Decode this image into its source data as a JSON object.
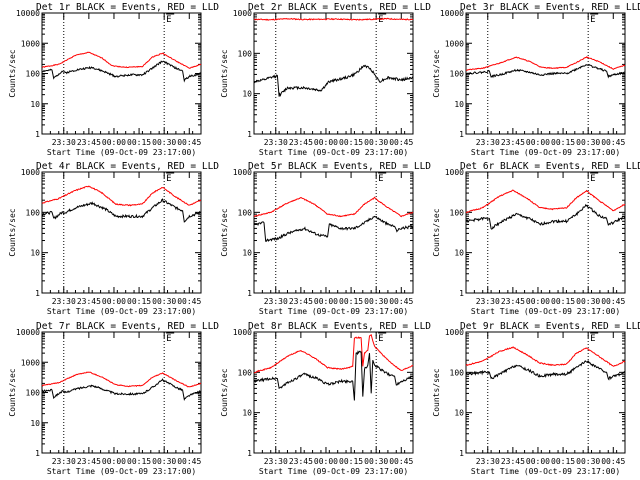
{
  "figure": {
    "background": "#ffffff",
    "colors": {
      "events": "#000000",
      "lld": "#ff0000",
      "axes": "#000000"
    }
  },
  "chart_data": [
    {
      "type": "line",
      "title": "Det 1r BLACK = Events, RED = LLD",
      "xlabel": "Start Time (09-Oct-09 23:17:00)",
      "ylabel": "Counts/sec",
      "x_ticks": [
        "23:30",
        "23:45",
        "00:00",
        "00:15",
        "00:30",
        "00:45"
      ],
      "y_ticks": [
        "1",
        "10",
        "100",
        "1000",
        "10000"
      ],
      "x_range_min": [
        0,
        95
      ],
      "y_log": true,
      "ylim": [
        1,
        10000
      ],
      "grid": false,
      "vlines_min": [
        13,
        73
      ],
      "marker_text": "E",
      "series": [
        {
          "name": "LLD",
          "color": "#ff0000",
          "x": [
            0,
            10,
            20,
            28,
            36,
            42,
            50,
            60,
            66,
            72,
            80,
            88,
            95
          ],
          "values": [
            160,
            200,
            400,
            500,
            320,
            180,
            160,
            170,
            350,
            470,
            260,
            150,
            200
          ]
        },
        {
          "name": "Events",
          "color": "#000000",
          "x": [
            0,
            6,
            7,
            12,
            14,
            20,
            30,
            38,
            44,
            52,
            60,
            66,
            72,
            80,
            84,
            85,
            88,
            95
          ],
          "values": [
            120,
            130,
            70,
            120,
            105,
            130,
            160,
            110,
            80,
            90,
            90,
            150,
            260,
            150,
            120,
            60,
            80,
            100
          ]
        }
      ]
    },
    {
      "type": "line",
      "title": "Det 2r BLACK = Events, RED = LLD",
      "xlabel": "Start Time (09-Oct-09 23:17:00)",
      "ylabel": "Counts/sec",
      "x_ticks": [
        "23:30",
        "23:45",
        "00:00",
        "00:15",
        "00:30",
        "00:45"
      ],
      "y_ticks": [
        "1",
        "10",
        "100",
        "1000"
      ],
      "x_range_min": [
        0,
        95
      ],
      "y_log": true,
      "ylim": [
        1,
        1000
      ],
      "grid": false,
      "vlines_min": [
        13,
        73
      ],
      "marker_text": "E",
      "series": [
        {
          "name": "LLD",
          "color": "#ff0000",
          "x": [
            0,
            10,
            20,
            30,
            40,
            50,
            60,
            70,
            80,
            90,
            95
          ],
          "values": [
            700,
            680,
            720,
            690,
            700,
            710,
            680,
            700,
            720,
            690,
            700
          ]
        },
        {
          "name": "Events",
          "color": "#000000",
          "x": [
            0,
            6,
            10,
            14,
            15,
            20,
            30,
            40,
            45,
            55,
            60,
            66,
            70,
            75,
            80,
            88,
            95
          ],
          "values": [
            20,
            22,
            25,
            28,
            9,
            14,
            14,
            12,
            20,
            25,
            30,
            50,
            40,
            20,
            25,
            22,
            25
          ]
        }
      ]
    },
    {
      "type": "line",
      "title": "Det 3r BLACK = Events, RED = LLD",
      "xlabel": "Start Time (09-Oct-09 23:17:00)",
      "ylabel": "Counts/sec",
      "x_ticks": [
        "23:30",
        "23:45",
        "00:00",
        "00:15",
        "00:30",
        "00:45"
      ],
      "y_ticks": [
        "1",
        "10",
        "100",
        "1000",
        "10000"
      ],
      "x_range_min": [
        0,
        95
      ],
      "y_log": true,
      "ylim": [
        1,
        10000
      ],
      "grid": false,
      "vlines_min": [
        13,
        73
      ],
      "marker_text": "E",
      "series": [
        {
          "name": "LLD",
          "color": "#ff0000",
          "x": [
            0,
            10,
            20,
            30,
            38,
            45,
            52,
            60,
            66,
            72,
            80,
            88,
            95
          ],
          "values": [
            130,
            150,
            220,
            350,
            250,
            160,
            150,
            160,
            230,
            350,
            240,
            140,
            190
          ]
        },
        {
          "name": "Events",
          "color": "#000000",
          "x": [
            0,
            10,
            14,
            15,
            20,
            30,
            38,
            44,
            52,
            60,
            66,
            72,
            80,
            84,
            85,
            88,
            95
          ],
          "values": [
            100,
            110,
            120,
            80,
            90,
            130,
            110,
            90,
            100,
            100,
            140,
            200,
            140,
            120,
            80,
            90,
            110
          ]
        }
      ]
    },
    {
      "type": "line",
      "title": "Det 4r BLACK = Events, RED = LLD",
      "xlabel": "Start Time (09-Oct-09 23:17:00)",
      "ylabel": "Counts/sec",
      "x_ticks": [
        "23:30",
        "23:45",
        "00:00",
        "00:15",
        "00:30",
        "00:45"
      ],
      "y_ticks": [
        "1",
        "10",
        "100",
        "1000"
      ],
      "x_range_min": [
        0,
        95
      ],
      "y_log": true,
      "ylim": [
        1,
        1000
      ],
      "grid": false,
      "vlines_min": [
        13,
        73
      ],
      "marker_text": "E",
      "series": [
        {
          "name": "LLD",
          "color": "#ff0000",
          "x": [
            0,
            10,
            20,
            28,
            36,
            44,
            52,
            60,
            66,
            72,
            80,
            88,
            95
          ],
          "values": [
            170,
            220,
            350,
            450,
            300,
            160,
            150,
            160,
            300,
            420,
            240,
            150,
            200
          ]
        },
        {
          "name": "Events",
          "color": "#000000",
          "x": [
            0,
            6,
            7,
            12,
            14,
            20,
            30,
            38,
            44,
            52,
            60,
            66,
            72,
            80,
            84,
            85,
            88,
            95
          ],
          "values": [
            90,
            100,
            70,
            100,
            100,
            130,
            170,
            120,
            80,
            80,
            80,
            130,
            200,
            130,
            110,
            60,
            80,
            100
          ]
        }
      ]
    },
    {
      "type": "line",
      "title": "Det 5r BLACK = Events, RED = LLD",
      "xlabel": "Start Time (09-Oct-09 23:17:00)",
      "ylabel": "Counts/sec",
      "x_ticks": [
        "23:30",
        "23:45",
        "00:00",
        "00:15",
        "00:30",
        "00:45"
      ],
      "y_ticks": [
        "1",
        "10",
        "100",
        "1000"
      ],
      "x_range_min": [
        0,
        95
      ],
      "y_log": true,
      "ylim": [
        1,
        1000
      ],
      "grid": false,
      "vlines_min": [
        13,
        73
      ],
      "marker_text": "E",
      "series": [
        {
          "name": "LLD",
          "color": "#ff0000",
          "x": [
            0,
            10,
            20,
            28,
            36,
            44,
            52,
            60,
            66,
            72,
            80,
            88,
            95
          ],
          "values": [
            80,
            100,
            170,
            230,
            160,
            90,
            80,
            90,
            160,
            230,
            130,
            80,
            100
          ]
        },
        {
          "name": "Events",
          "color": "#000000",
          "x": [
            0,
            6,
            7,
            12,
            14,
            20,
            30,
            38,
            44,
            45,
            52,
            60,
            66,
            72,
            80,
            84,
            85,
            88,
            95
          ],
          "values": [
            50,
            55,
            20,
            22,
            22,
            30,
            40,
            28,
            25,
            50,
            40,
            40,
            55,
            80,
            50,
            45,
            35,
            40,
            45
          ]
        }
      ]
    },
    {
      "type": "line",
      "title": "Det 6r BLACK = Events, RED = LLD",
      "xlabel": "Start Time (09-Oct-09 23:17:00)",
      "ylabel": "Counts/sec",
      "x_ticks": [
        "23:30",
        "23:45",
        "00:00",
        "00:15",
        "00:30",
        "00:45"
      ],
      "y_ticks": [
        "1",
        "10",
        "100",
        "1000"
      ],
      "x_range_min": [
        0,
        95
      ],
      "y_log": true,
      "ylim": [
        1,
        1000
      ],
      "grid": false,
      "vlines_min": [
        13,
        73
      ],
      "marker_text": "E",
      "series": [
        {
          "name": "LLD",
          "color": "#ff0000",
          "x": [
            0,
            10,
            20,
            28,
            36,
            44,
            52,
            60,
            66,
            72,
            80,
            88,
            95
          ],
          "values": [
            100,
            130,
            250,
            350,
            230,
            130,
            120,
            130,
            230,
            340,
            190,
            110,
            160
          ]
        },
        {
          "name": "Events",
          "color": "#000000",
          "x": [
            0,
            10,
            14,
            15,
            20,
            30,
            38,
            44,
            52,
            60,
            66,
            72,
            80,
            84,
            85,
            88,
            95
          ],
          "values": [
            60,
            70,
            70,
            40,
            55,
            90,
            70,
            50,
            60,
            60,
            90,
            150,
            80,
            70,
            50,
            55,
            80
          ]
        }
      ]
    },
    {
      "type": "line",
      "title": "Det 7r BLACK = Events, RED = LLD",
      "xlabel": "Start Time (09-Oct-09 23:17:00)",
      "ylabel": "Counts/sec",
      "x_ticks": [
        "23:30",
        "23:45",
        "00:00",
        "00:15",
        "00:30",
        "00:45"
      ],
      "y_ticks": [
        "1",
        "10",
        "100",
        "1000",
        "10000"
      ],
      "x_range_min": [
        0,
        95
      ],
      "y_log": true,
      "ylim": [
        1,
        10000
      ],
      "grid": false,
      "vlines_min": [
        13,
        73
      ],
      "marker_text": "E",
      "series": [
        {
          "name": "LLD",
          "color": "#ff0000",
          "x": [
            0,
            10,
            20,
            28,
            36,
            44,
            52,
            60,
            66,
            72,
            80,
            88,
            95
          ],
          "values": [
            170,
            210,
            380,
            480,
            320,
            180,
            160,
            170,
            320,
            440,
            250,
            150,
            200
          ]
        },
        {
          "name": "Events",
          "color": "#000000",
          "x": [
            0,
            6,
            7,
            12,
            14,
            20,
            30,
            38,
            44,
            52,
            60,
            66,
            72,
            80,
            84,
            85,
            88,
            95
          ],
          "values": [
            110,
            120,
            70,
            110,
            100,
            130,
            170,
            120,
            90,
            90,
            90,
            150,
            260,
            150,
            120,
            60,
            80,
            110
          ]
        }
      ]
    },
    {
      "type": "line",
      "title": "Det 8r BLACK = Events, RED = LLD",
      "xlabel": "Start Time (09-Oct-09 23:17:00)",
      "ylabel": "Counts/sec",
      "x_ticks": [
        "23:30",
        "23:45",
        "00:00",
        "00:15",
        "00:30",
        "00:45"
      ],
      "y_ticks": [
        "1",
        "10",
        "100",
        "1000"
      ],
      "x_range_min": [
        0,
        95
      ],
      "y_log": true,
      "ylim": [
        1,
        1000
      ],
      "grid": false,
      "vlines_min": [
        13,
        73
      ],
      "marker_text": "E",
      "series": [
        {
          "name": "LLD",
          "color": "#ff0000",
          "x": [
            0,
            10,
            20,
            28,
            36,
            44,
            52,
            59,
            60,
            61,
            64,
            65,
            66,
            68,
            69,
            70,
            71,
            72,
            73,
            80,
            88,
            95
          ],
          "values": [
            100,
            130,
            250,
            350,
            230,
            130,
            120,
            140,
            700,
            730,
            720,
            140,
            300,
            350,
            800,
            850,
            600,
            450,
            400,
            200,
            110,
            150
          ]
        },
        {
          "name": "Events",
          "color": "#000000",
          "x": [
            0,
            10,
            14,
            15,
            20,
            30,
            38,
            44,
            52,
            59,
            60,
            61,
            64,
            65,
            66,
            68,
            69,
            70,
            71,
            72,
            80,
            84,
            85,
            88,
            95
          ],
          "values": [
            60,
            70,
            70,
            40,
            55,
            90,
            70,
            50,
            60,
            60,
            20,
            300,
            320,
            25,
            120,
            150,
            300,
            30,
            200,
            150,
            90,
            80,
            50,
            60,
            80
          ]
        }
      ]
    },
    {
      "type": "line",
      "title": "Det 9r BLACK = Events, RED = LLD",
      "xlabel": "Start Time (09-Oct-09 23:17:00)",
      "ylabel": "Counts/sec",
      "x_ticks": [
        "23:30",
        "23:45",
        "00:00",
        "00:15",
        "00:30",
        "00:45"
      ],
      "y_ticks": [
        "1",
        "10",
        "100",
        "1000"
      ],
      "x_range_min": [
        0,
        95
      ],
      "y_log": true,
      "ylim": [
        1,
        1000
      ],
      "grid": false,
      "vlines_min": [
        13,
        73
      ],
      "marker_text": "E",
      "series": [
        {
          "name": "LLD",
          "color": "#ff0000",
          "x": [
            0,
            10,
            20,
            28,
            36,
            44,
            52,
            60,
            66,
            72,
            80,
            88,
            95
          ],
          "values": [
            150,
            190,
            330,
            420,
            280,
            170,
            150,
            160,
            300,
            400,
            240,
            140,
            190
          ]
        },
        {
          "name": "Events",
          "color": "#000000",
          "x": [
            0,
            10,
            14,
            15,
            20,
            30,
            38,
            44,
            52,
            60,
            66,
            72,
            80,
            84,
            85,
            88,
            95
          ],
          "values": [
            90,
            100,
            100,
            70,
            90,
            150,
            110,
            80,
            90,
            90,
            130,
            190,
            120,
            100,
            70,
            80,
            100
          ]
        }
      ]
    }
  ]
}
